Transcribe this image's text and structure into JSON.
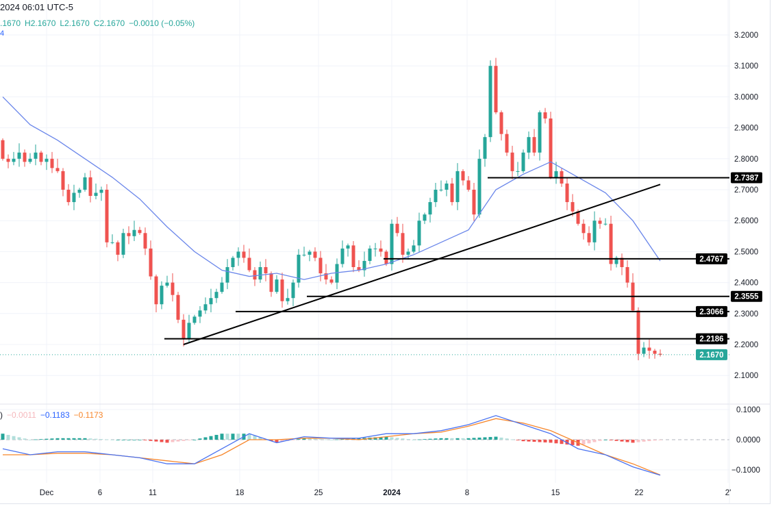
{
  "header": {
    "datetime": "2024 06:01 UTC-5",
    "ohlc": {
      "open": ".1670",
      "high": "H2.1670",
      "low": "L2.1670",
      "close": "C2.1670",
      "change": "−0.0010 (−0.05%)"
    },
    "ma_value": "4"
  },
  "macd_legend": {
    "prefix": ")",
    "hist": "−0.0011",
    "macd": "−0.1183",
    "signal": "−0.1173"
  },
  "colors": {
    "up": "#26a69a",
    "down": "#ef5350",
    "ma": "#6a86ea",
    "macd": "#4a72f0",
    "signal": "#f7862a",
    "hist_up": "#26a69a",
    "hist_up_light": "#b2dfdb",
    "hist_down": "#ef5350",
    "hist_down_light": "#f8c4c8",
    "grid": "#f0f3fa",
    "level": "#000000"
  },
  "chart_data": {
    "type": "candlestick",
    "price_axis": {
      "ticks": [
        "3.2000",
        "3.1000",
        "3.0000",
        "2.9000",
        "2.8000",
        "2.7000",
        "2.6000",
        "2.5000",
        "2.4000",
        "2.3000",
        "2.2000",
        "2.1000"
      ],
      "range": [
        2.05,
        3.22
      ]
    },
    "macd_axis": {
      "ticks": [
        "0.1000",
        "0.0000",
        "−0.1000"
      ]
    },
    "time_axis": {
      "ticks": [
        "Dec",
        "6",
        "11",
        "18",
        "25",
        "2024",
        "8",
        "15",
        "22",
        "2'"
      ]
    },
    "closes": [
      2.8,
      2.79,
      2.8,
      2.82,
      2.79,
      2.8,
      2.82,
      2.79,
      2.8,
      2.77,
      2.76,
      2.7,
      2.66,
      2.69,
      2.7,
      2.74,
      2.68,
      2.69,
      2.7,
      2.53,
      2.53,
      2.49,
      2.56,
      2.55,
      2.57,
      2.56,
      2.51,
      2.42,
      2.33,
      2.39,
      2.4,
      2.36,
      2.28,
      2.22,
      2.27,
      2.29,
      2.31,
      2.33,
      2.35,
      2.37,
      2.4,
      2.45,
      2.48,
      2.5,
      2.48,
      2.44,
      2.41,
      2.45,
      2.43,
      2.37,
      2.41,
      2.34,
      2.35,
      2.4,
      2.49,
      2.49,
      2.5,
      2.48,
      2.43,
      2.41,
      2.4,
      2.46,
      2.51,
      2.52,
      2.45,
      2.44,
      2.47,
      2.51,
      2.51,
      2.5,
      2.46,
      2.59,
      2.56,
      2.49,
      2.5,
      2.52,
      2.6,
      2.62,
      2.66,
      2.7,
      2.7,
      2.72,
      2.66,
      2.76,
      2.73,
      2.7,
      2.62,
      2.8,
      2.87,
      3.1,
      2.95,
      2.88,
      2.82,
      2.76,
      2.76,
      2.82,
      2.87,
      2.82,
      2.95,
      2.93,
      2.74,
      2.76,
      2.72,
      2.66,
      2.63,
      2.59,
      2.56,
      2.53,
      2.6,
      2.59,
      2.59,
      2.46,
      2.48,
      2.45,
      2.4,
      2.31,
      2.17,
      2.19,
      2.18,
      2.17,
      2.167
    ],
    "first_open": 2.86,
    "ma": {
      "every": 5,
      "values": [
        3.0,
        2.91,
        2.86,
        2.8,
        2.74,
        2.67,
        2.58,
        2.5,
        2.44,
        2.42,
        2.43,
        2.41,
        2.43,
        2.44,
        2.46,
        2.49,
        2.53,
        2.57,
        2.7,
        2.75,
        2.79,
        2.74,
        2.69,
        2.6,
        2.47
      ]
    },
    "macd": {
      "every": 5,
      "macd": [
        -0.03,
        -0.05,
        -0.04,
        -0.04,
        -0.05,
        -0.06,
        -0.08,
        -0.08,
        -0.03,
        0.02,
        -0.01,
        0.01,
        0.005,
        0.005,
        0.02,
        0.02,
        0.03,
        0.05,
        0.08,
        0.05,
        0.02,
        -0.03,
        -0.05,
        -0.09,
        -0.118
      ],
      "signal": [
        -0.05,
        -0.05,
        -0.045,
        -0.045,
        -0.05,
        -0.06,
        -0.07,
        -0.08,
        -0.05,
        0.0,
        0.0,
        0.005,
        0.005,
        0.0,
        0.01,
        0.02,
        0.025,
        0.045,
        0.07,
        0.055,
        0.03,
        -0.01,
        -0.05,
        -0.08,
        -0.117
      ]
    },
    "levels": [
      {
        "price": 2.7387,
        "label": "2.7387",
        "from_index": 90
      },
      {
        "price": 2.4767,
        "label": "2.4767",
        "from_index": 71
      },
      {
        "price": 2.3555,
        "label": "2.3555",
        "from_index": 57
      },
      {
        "price": 2.3066,
        "label": "2.3066",
        "from_index": 44
      },
      {
        "price": 2.2186,
        "label": "2.2186",
        "from_index": 31
      }
    ],
    "trendline": {
      "from": {
        "index": 33,
        "price": 2.2
      },
      "to": {
        "index": 120,
        "price": 2.717
      }
    },
    "last_price": {
      "price": 2.167,
      "label": "2.1670"
    }
  }
}
